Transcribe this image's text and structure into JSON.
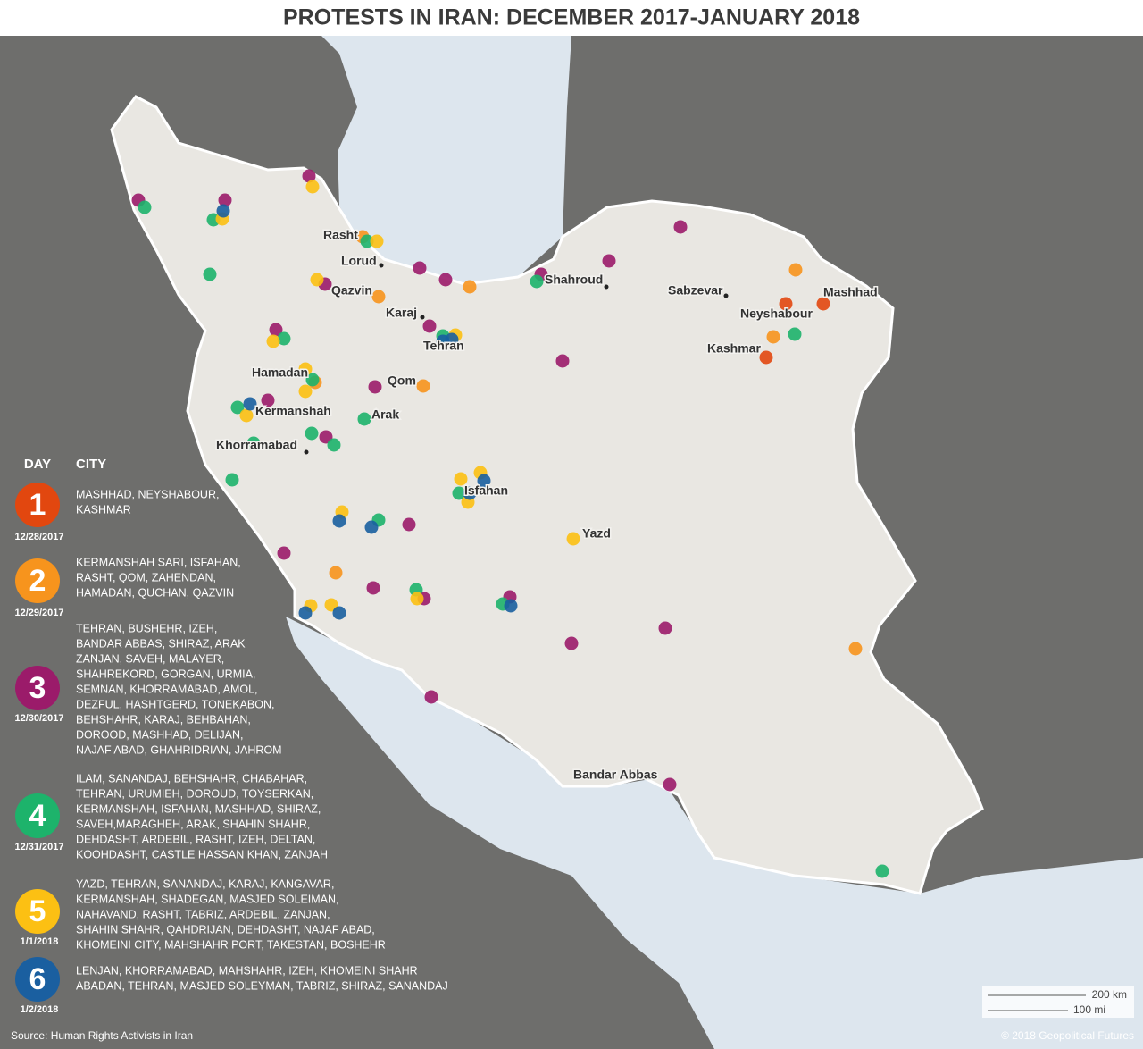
{
  "header": {
    "title": "PROTESTS IN IRAN: DECEMBER 2017-JANUARY 2018"
  },
  "map": {
    "cities": [
      "Rasht",
      "Lorud",
      "Qazvin",
      "Karaj",
      "Tehran",
      "Shahroud",
      "Sabzevar",
      "Mashhad",
      "Neyshabour",
      "Kashmar",
      "Hamadan",
      "Qom",
      "Kermanshah",
      "Arak",
      "Khorramabad",
      "Isfahan",
      "Yazd",
      "Bandar Abbas"
    ]
  },
  "legend": {
    "day_header": "DAY",
    "city_header": "CITY",
    "items": [
      {
        "day": "1",
        "date": "12/28/2017",
        "color": "#e2470f",
        "cities": [
          "MASHHAD, NEYSHABOUR,",
          "KASHMAR"
        ]
      },
      {
        "day": "2",
        "date": "12/29/2017",
        "color": "#f7941d",
        "cities": [
          "KERMANSHAH SARI, ISFAHAN,",
          "RASHT, QOM, ZAHENDAN,",
          "HAMADAN, QUCHAN, QAZVIN"
        ]
      },
      {
        "day": "3",
        "date": "12/30/2017",
        "color": "#9b1b6a",
        "cities": [
          "TEHRAN, BUSHEHR, IZEH,",
          "BANDAR ABBAS, SHIRAZ, ARAK",
          "ZANJAN, SAVEH, MALAYER,",
          "SHAHREKORD, GORGAN, URMIA,",
          "SEMNAN, KHORRAMABAD, AMOL,",
          "DEZFUL, HASHTGERD, TONEKABON,",
          "BEHSHAHR, KARAJ, BEHBAHAN,",
          "DOROOD, MASHHAD, DELIJAN,",
          "NAJAF ABAD, GHAHRIDRIAN, JAHROM"
        ]
      },
      {
        "day": "4",
        "date": "12/31/2017",
        "color": "#1db36b",
        "cities": [
          "ILAM, SANANDAJ, BEHSHAHR, CHABAHAR,",
          "TEHRAN, URUMIEH, DOROUD, TOYSERKAN,",
          "KERMANSHAH, ISFAHAN, MASHHAD, SHIRAZ,",
          "SAVEH,MARAGHEH, ARAK, SHAHIN SHAHR,",
          "DEHDASHT, ARDEBIL, RASHT, IZEH, DELTAN,",
          "KOOHDASHT, CASTLE HASSAN KHAN, ZANJAH"
        ]
      },
      {
        "day": "5",
        "date": "1/1/2018",
        "color": "#fcc013",
        "cities": [
          "YAZD, TEHRAN, SANANDAJ, KARAJ, KANGAVAR,",
          "KERMANSHAH, SHADEGAN, MASJED SOLEIMAN,",
          "NAHAVAND, RASHT, TABRIZ, ARDEBIL, ZANJAN,",
          "SHAHIN SHAHR, QAHDRIJAN, DEHDASHT, NAJAF ABAD,",
          "KHOMEINI CITY, MAHSHAHR PORT, TAKESTAN, BOSHEHR"
        ]
      },
      {
        "day": "6",
        "date": "1/2/2018",
        "color": "#1a5fa0",
        "cities": [
          "LENJAN, KHORRAMABAD, MAHSHAHR, IZEH, KHOMEINI SHAHR",
          "ABADAN, TEHRAN, MASJED SOLEYMAN, TABRIZ, SHIRAZ, SANANDAJ"
        ]
      }
    ]
  },
  "scale": {
    "km": "200 km",
    "mi": "100 mi"
  },
  "footer": {
    "source": "Source: Human Rights Activists in Iran",
    "copyright": "© 2018 Geopolitical Futures"
  }
}
